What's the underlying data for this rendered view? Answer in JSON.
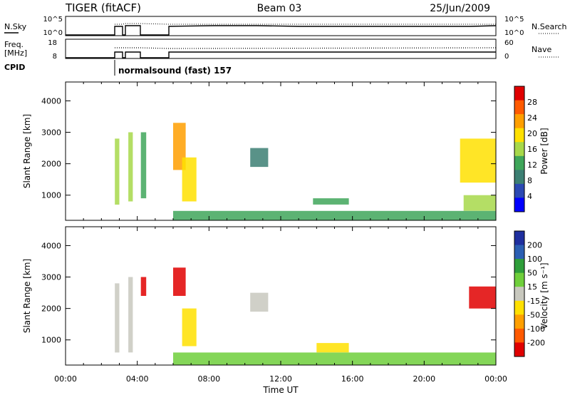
{
  "header": {
    "title": "TIGER (fitACF)",
    "beam": "Beam 03",
    "date": "25/Jun/2009"
  },
  "status_panels": {
    "nsky_label": "N.Sky",
    "nsky_ticks": [
      "10^5",
      "10^0"
    ],
    "nsearch_label": "N.Search",
    "nsearch_ticks": [
      "10^5",
      "10^0"
    ],
    "freq_label_1": "Freq.",
    "freq_label_2": "[MHz]",
    "freq_ticks": [
      "18",
      "8"
    ],
    "nave_label": "Nave",
    "nave_ticks": [
      "60",
      "0"
    ],
    "cpid_label": "CPID",
    "cpid_text": "normalsound (fast) 157"
  },
  "chart_data": [
    {
      "type": "heatmap",
      "panel": "power",
      "xlabel": "Time UT",
      "ylabel": "Slant Range [km]",
      "xlim": [
        0,
        24
      ],
      "ylim": [
        200,
        4600
      ],
      "x_ticks": [
        "00:00",
        "04:00",
        "08:00",
        "12:00",
        "16:00",
        "20:00",
        "00:00"
      ],
      "y_ticks": [
        "1000",
        "2000",
        "3000",
        "4000"
      ],
      "colorbar": {
        "label": "Power [dB]",
        "ticks": [
          "28",
          "24",
          "20",
          "16",
          "12",
          "8",
          "4"
        ],
        "range": [
          0,
          32
        ],
        "colors": [
          "#0000ff",
          "#2b49b3",
          "#3c7f73",
          "#3fa65a",
          "#a7d84a",
          "#ffe000",
          "#ff9f00",
          "#ff5a00",
          "#e00000"
        ]
      },
      "regions": [
        {
          "t0": 2.75,
          "t1": 3.0,
          "r0": 700,
          "r1": 2800,
          "v": 16
        },
        {
          "t0": 3.5,
          "t1": 3.75,
          "r0": 800,
          "r1": 3000,
          "v": 16
        },
        {
          "t0": 4.2,
          "t1": 4.5,
          "r0": 900,
          "r1": 3000,
          "v": 14
        },
        {
          "t0": 6.0,
          "t1": 6.7,
          "r0": 1800,
          "r1": 3300,
          "v": 22
        },
        {
          "t0": 6.5,
          "t1": 7.3,
          "r0": 800,
          "r1": 2200,
          "v": 20
        },
        {
          "t0": 10.3,
          "t1": 11.3,
          "r0": 1900,
          "r1": 2500,
          "v": 8
        },
        {
          "t0": 13.8,
          "t1": 15.8,
          "r0": 700,
          "r1": 900,
          "v": 12
        },
        {
          "t0": 22.0,
          "t1": 24.0,
          "r0": 1400,
          "r1": 2800,
          "v": 18
        },
        {
          "t0": 22.2,
          "t1": 24.0,
          "r0": 500,
          "r1": 1000,
          "v": 16
        },
        {
          "t0": 6.0,
          "t1": 24.0,
          "r0": 200,
          "r1": 500,
          "v": 14
        }
      ]
    },
    {
      "type": "heatmap",
      "panel": "velocity",
      "xlabel": "Time UT",
      "ylabel": "Slant Range [km]",
      "xlim": [
        0,
        24
      ],
      "ylim": [
        200,
        4600
      ],
      "x_ticks": [
        "00:00",
        "04:00",
        "08:00",
        "12:00",
        "16:00",
        "20:00",
        "00:00"
      ],
      "y_ticks": [
        "1000",
        "2000",
        "3000",
        "4000"
      ],
      "colorbar": {
        "label": "Velocity [m s⁻¹]",
        "ticks": [
          "200",
          "100",
          "50",
          "15",
          "-15",
          "-50",
          "-100",
          "-200"
        ],
        "range": [
          -250,
          250
        ],
        "colors": [
          "#e00000",
          "#ff5a00",
          "#ff9f00",
          "#ffe000",
          "#c8c8be",
          "#6fcf3b",
          "#2e9e3a",
          "#2b5fb3",
          "#1f2f9f"
        ]
      },
      "regions": [
        {
          "t0": 2.75,
          "t1": 3.0,
          "r0": 600,
          "r1": 2800,
          "v": 0
        },
        {
          "t0": 3.5,
          "t1": 3.75,
          "r0": 600,
          "r1": 3000,
          "v": 0
        },
        {
          "t0": 4.2,
          "t1": 4.5,
          "r0": 2400,
          "r1": 3000,
          "v": -200
        },
        {
          "t0": 6.0,
          "t1": 6.7,
          "r0": 2400,
          "r1": 3300,
          "v": -200
        },
        {
          "t0": 6.5,
          "t1": 7.3,
          "r0": 800,
          "r1": 2000,
          "v": -80
        },
        {
          "t0": 10.3,
          "t1": 11.3,
          "r0": 1900,
          "r1": 2500,
          "v": 0
        },
        {
          "t0": 14.0,
          "t1": 15.8,
          "r0": 600,
          "r1": 900,
          "v": -80
        },
        {
          "t0": 22.5,
          "t1": 24.0,
          "r0": 2000,
          "r1": 2700,
          "v": -200
        },
        {
          "t0": 6.0,
          "t1": 24.0,
          "r0": 200,
          "r1": 600,
          "v": 40
        }
      ]
    }
  ]
}
